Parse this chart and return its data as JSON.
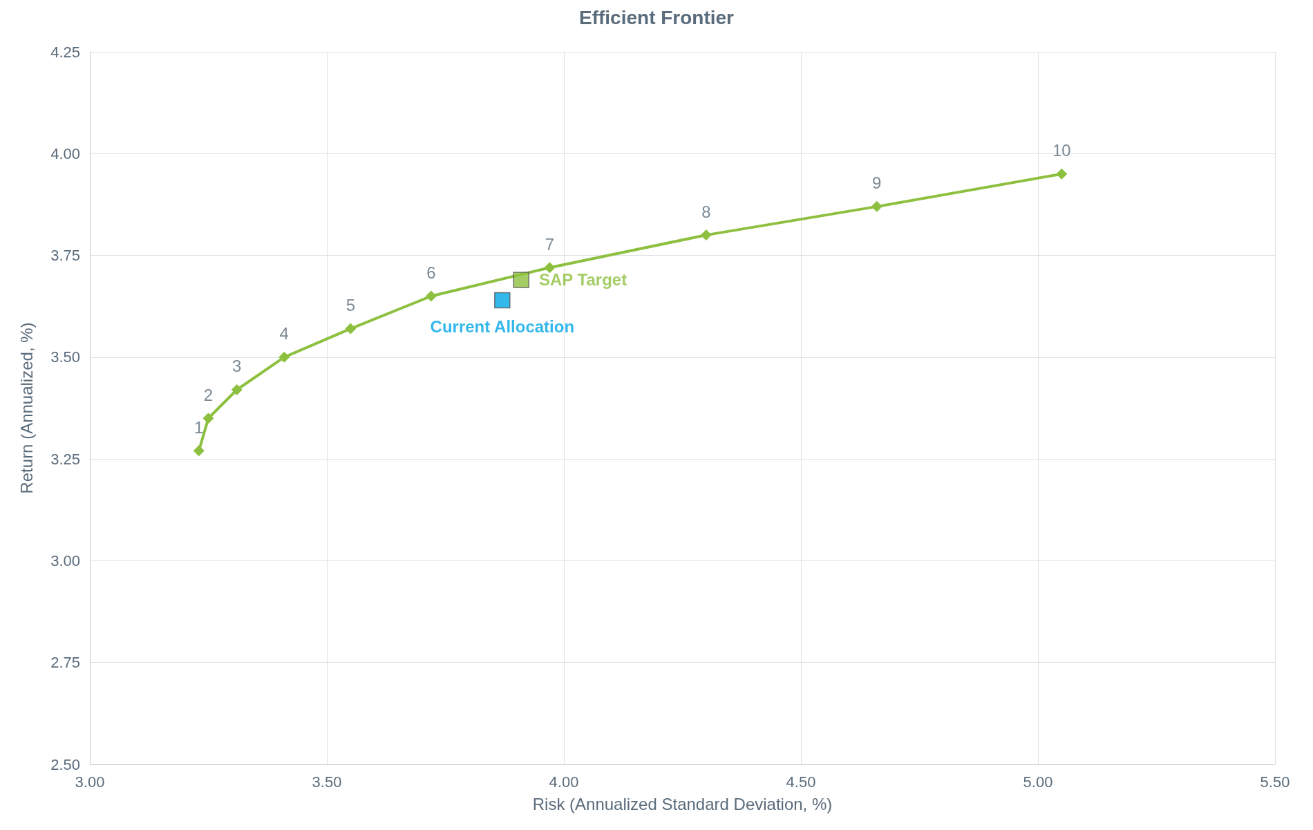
{
  "chart_data": {
    "type": "line",
    "title": "Efficient Frontier",
    "xlabel": "Risk (Annualized Standard Deviation, %)",
    "ylabel": "Return (Annualized, %)",
    "xlim": [
      3.0,
      5.5
    ],
    "ylim": [
      2.5,
      4.25
    ],
    "xticks": [
      {
        "value": 3.0,
        "label": "3.00"
      },
      {
        "value": 3.5,
        "label": "3.50"
      },
      {
        "value": 4.0,
        "label": "4.00"
      },
      {
        "value": 4.5,
        "label": "4.50"
      },
      {
        "value": 5.0,
        "label": "5.00"
      },
      {
        "value": 5.5,
        "label": "5.50"
      }
    ],
    "yticks": [
      {
        "value": 2.5,
        "label": "2.50"
      },
      {
        "value": 2.75,
        "label": "2.75"
      },
      {
        "value": 3.0,
        "label": "3.00"
      },
      {
        "value": 3.25,
        "label": "3.25"
      },
      {
        "value": 3.5,
        "label": "3.50"
      },
      {
        "value": 3.75,
        "label": "3.75"
      },
      {
        "value": 4.0,
        "label": "4.00"
      },
      {
        "value": 4.25,
        "label": "4.25"
      }
    ],
    "grid": true,
    "legend": false,
    "series": [
      {
        "marker": "diamond",
        "color": "#8dc03f",
        "x": [
          3.23,
          3.25,
          3.31,
          3.41,
          3.55,
          3.72,
          3.97,
          4.3,
          4.66,
          5.05
        ],
        "values": [
          3.27,
          3.35,
          3.42,
          3.5,
          3.57,
          3.65,
          3.72,
          3.8,
          3.87,
          3.95
        ]
      },
      {
        "type": "scatter",
        "marker": "square",
        "name": "SAP Target",
        "color": "#8dc03f",
        "x": [
          3.91
        ],
        "values": [
          3.69
        ]
      },
      {
        "type": "scatter",
        "marker": "square",
        "name": "Current Allocation",
        "color": "#00a6e6",
        "x": [
          3.87
        ],
        "values": [
          3.64
        ]
      }
    ],
    "annotations": [
      {
        "text": "1",
        "x": 3.23,
        "y": 3.27
      },
      {
        "text": "2",
        "x": 3.25,
        "y": 3.35
      },
      {
        "text": "3",
        "x": 3.31,
        "y": 3.42
      },
      {
        "text": "4",
        "x": 3.41,
        "y": 3.5
      },
      {
        "text": "5",
        "x": 3.55,
        "y": 3.57
      },
      {
        "text": "6",
        "x": 3.72,
        "y": 3.65
      },
      {
        "text": "7",
        "x": 3.97,
        "y": 3.72
      },
      {
        "text": "8",
        "x": 4.3,
        "y": 3.8
      },
      {
        "text": "9",
        "x": 4.66,
        "y": 3.87
      },
      {
        "text": "10",
        "x": 5.05,
        "y": 3.95
      }
    ]
  }
}
